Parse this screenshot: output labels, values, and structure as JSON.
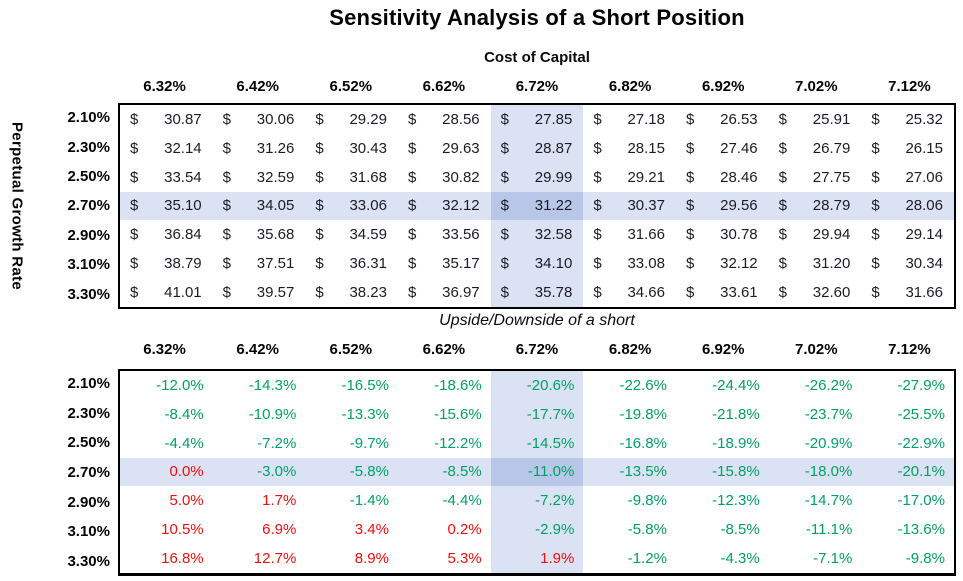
{
  "title": "Sensitivity Analysis of a Short Position",
  "chart_data": [
    {
      "type": "table",
      "name": "valuation",
      "title": "Cost of Capital",
      "row_axis_label": "Perpetual Growth Rate",
      "col_headers": [
        "6.32%",
        "6.42%",
        "6.52%",
        "6.62%",
        "6.72%",
        "6.82%",
        "6.92%",
        "7.02%",
        "7.12%"
      ],
      "row_headers": [
        "2.10%",
        "2.30%",
        "2.50%",
        "2.70%",
        "2.90%",
        "3.10%",
        "3.30%"
      ],
      "value_format": "accounting_usd",
      "currency_symbol": "$",
      "values": [
        [
          "30.87",
          "30.06",
          "29.29",
          "28.56",
          "27.85",
          "27.18",
          "26.53",
          "25.91",
          "25.32"
        ],
        [
          "32.14",
          "31.26",
          "30.43",
          "29.63",
          "28.87",
          "28.15",
          "27.46",
          "26.79",
          "26.15"
        ],
        [
          "33.54",
          "32.59",
          "31.68",
          "30.82",
          "29.99",
          "29.21",
          "28.46",
          "27.75",
          "27.06"
        ],
        [
          "35.10",
          "34.05",
          "33.06",
          "32.12",
          "31.22",
          "30.37",
          "29.56",
          "28.79",
          "28.06"
        ],
        [
          "36.84",
          "35.68",
          "34.59",
          "33.56",
          "32.58",
          "31.66",
          "30.78",
          "29.94",
          "29.14"
        ],
        [
          "38.79",
          "37.51",
          "36.31",
          "35.17",
          "34.10",
          "33.08",
          "32.12",
          "31.20",
          "30.34"
        ],
        [
          "41.01",
          "39.57",
          "38.23",
          "36.97",
          "35.78",
          "34.66",
          "33.61",
          "32.60",
          "31.66"
        ]
      ]
    },
    {
      "type": "table",
      "name": "upside-downside",
      "title": "Upside/Downside of a short",
      "col_headers": [
        "6.32%",
        "6.42%",
        "6.52%",
        "6.62%",
        "6.72%",
        "6.82%",
        "6.92%",
        "7.02%",
        "7.12%"
      ],
      "row_headers": [
        "2.10%",
        "2.30%",
        "2.50%",
        "2.70%",
        "2.90%",
        "3.10%",
        "3.30%"
      ],
      "value_format": "percent",
      "values": [
        [
          "-12.0%",
          "-14.3%",
          "-16.5%",
          "-18.6%",
          "-20.6%",
          "-22.6%",
          "-24.4%",
          "-26.2%",
          "-27.9%"
        ],
        [
          "-8.4%",
          "-10.9%",
          "-13.3%",
          "-15.6%",
          "-17.7%",
          "-19.8%",
          "-21.8%",
          "-23.7%",
          "-25.5%"
        ],
        [
          "-4.4%",
          "-7.2%",
          "-9.7%",
          "-12.2%",
          "-14.5%",
          "-16.8%",
          "-18.9%",
          "-20.9%",
          "-22.9%"
        ],
        [
          "0.0%",
          "-3.0%",
          "-5.8%",
          "-8.5%",
          "-11.0%",
          "-13.5%",
          "-15.8%",
          "-18.0%",
          "-20.1%"
        ],
        [
          "5.0%",
          "1.7%",
          "-1.4%",
          "-4.4%",
          "-7.2%",
          "-9.8%",
          "-12.3%",
          "-14.7%",
          "-17.0%"
        ],
        [
          "10.5%",
          "6.9%",
          "3.4%",
          "0.2%",
          "-2.9%",
          "-5.8%",
          "-8.5%",
          "-11.1%",
          "-13.6%"
        ],
        [
          "16.8%",
          "12.7%",
          "8.9%",
          "5.3%",
          "1.9%",
          "-1.2%",
          "-4.3%",
          "-7.1%",
          "-9.8%"
        ]
      ]
    }
  ],
  "highlight": {
    "selected_col_header": "6.72%",
    "selected_row_header": "2.70%",
    "col_index": 4,
    "row_index": 3,
    "band_color": "#dbe2f3",
    "intersect_color": "#b8c6e8"
  },
  "colors": {
    "money_text": "#1c1c24",
    "negative_pct": "#00a263",
    "positive_pct": "#f20d0d",
    "border": "#000000"
  }
}
